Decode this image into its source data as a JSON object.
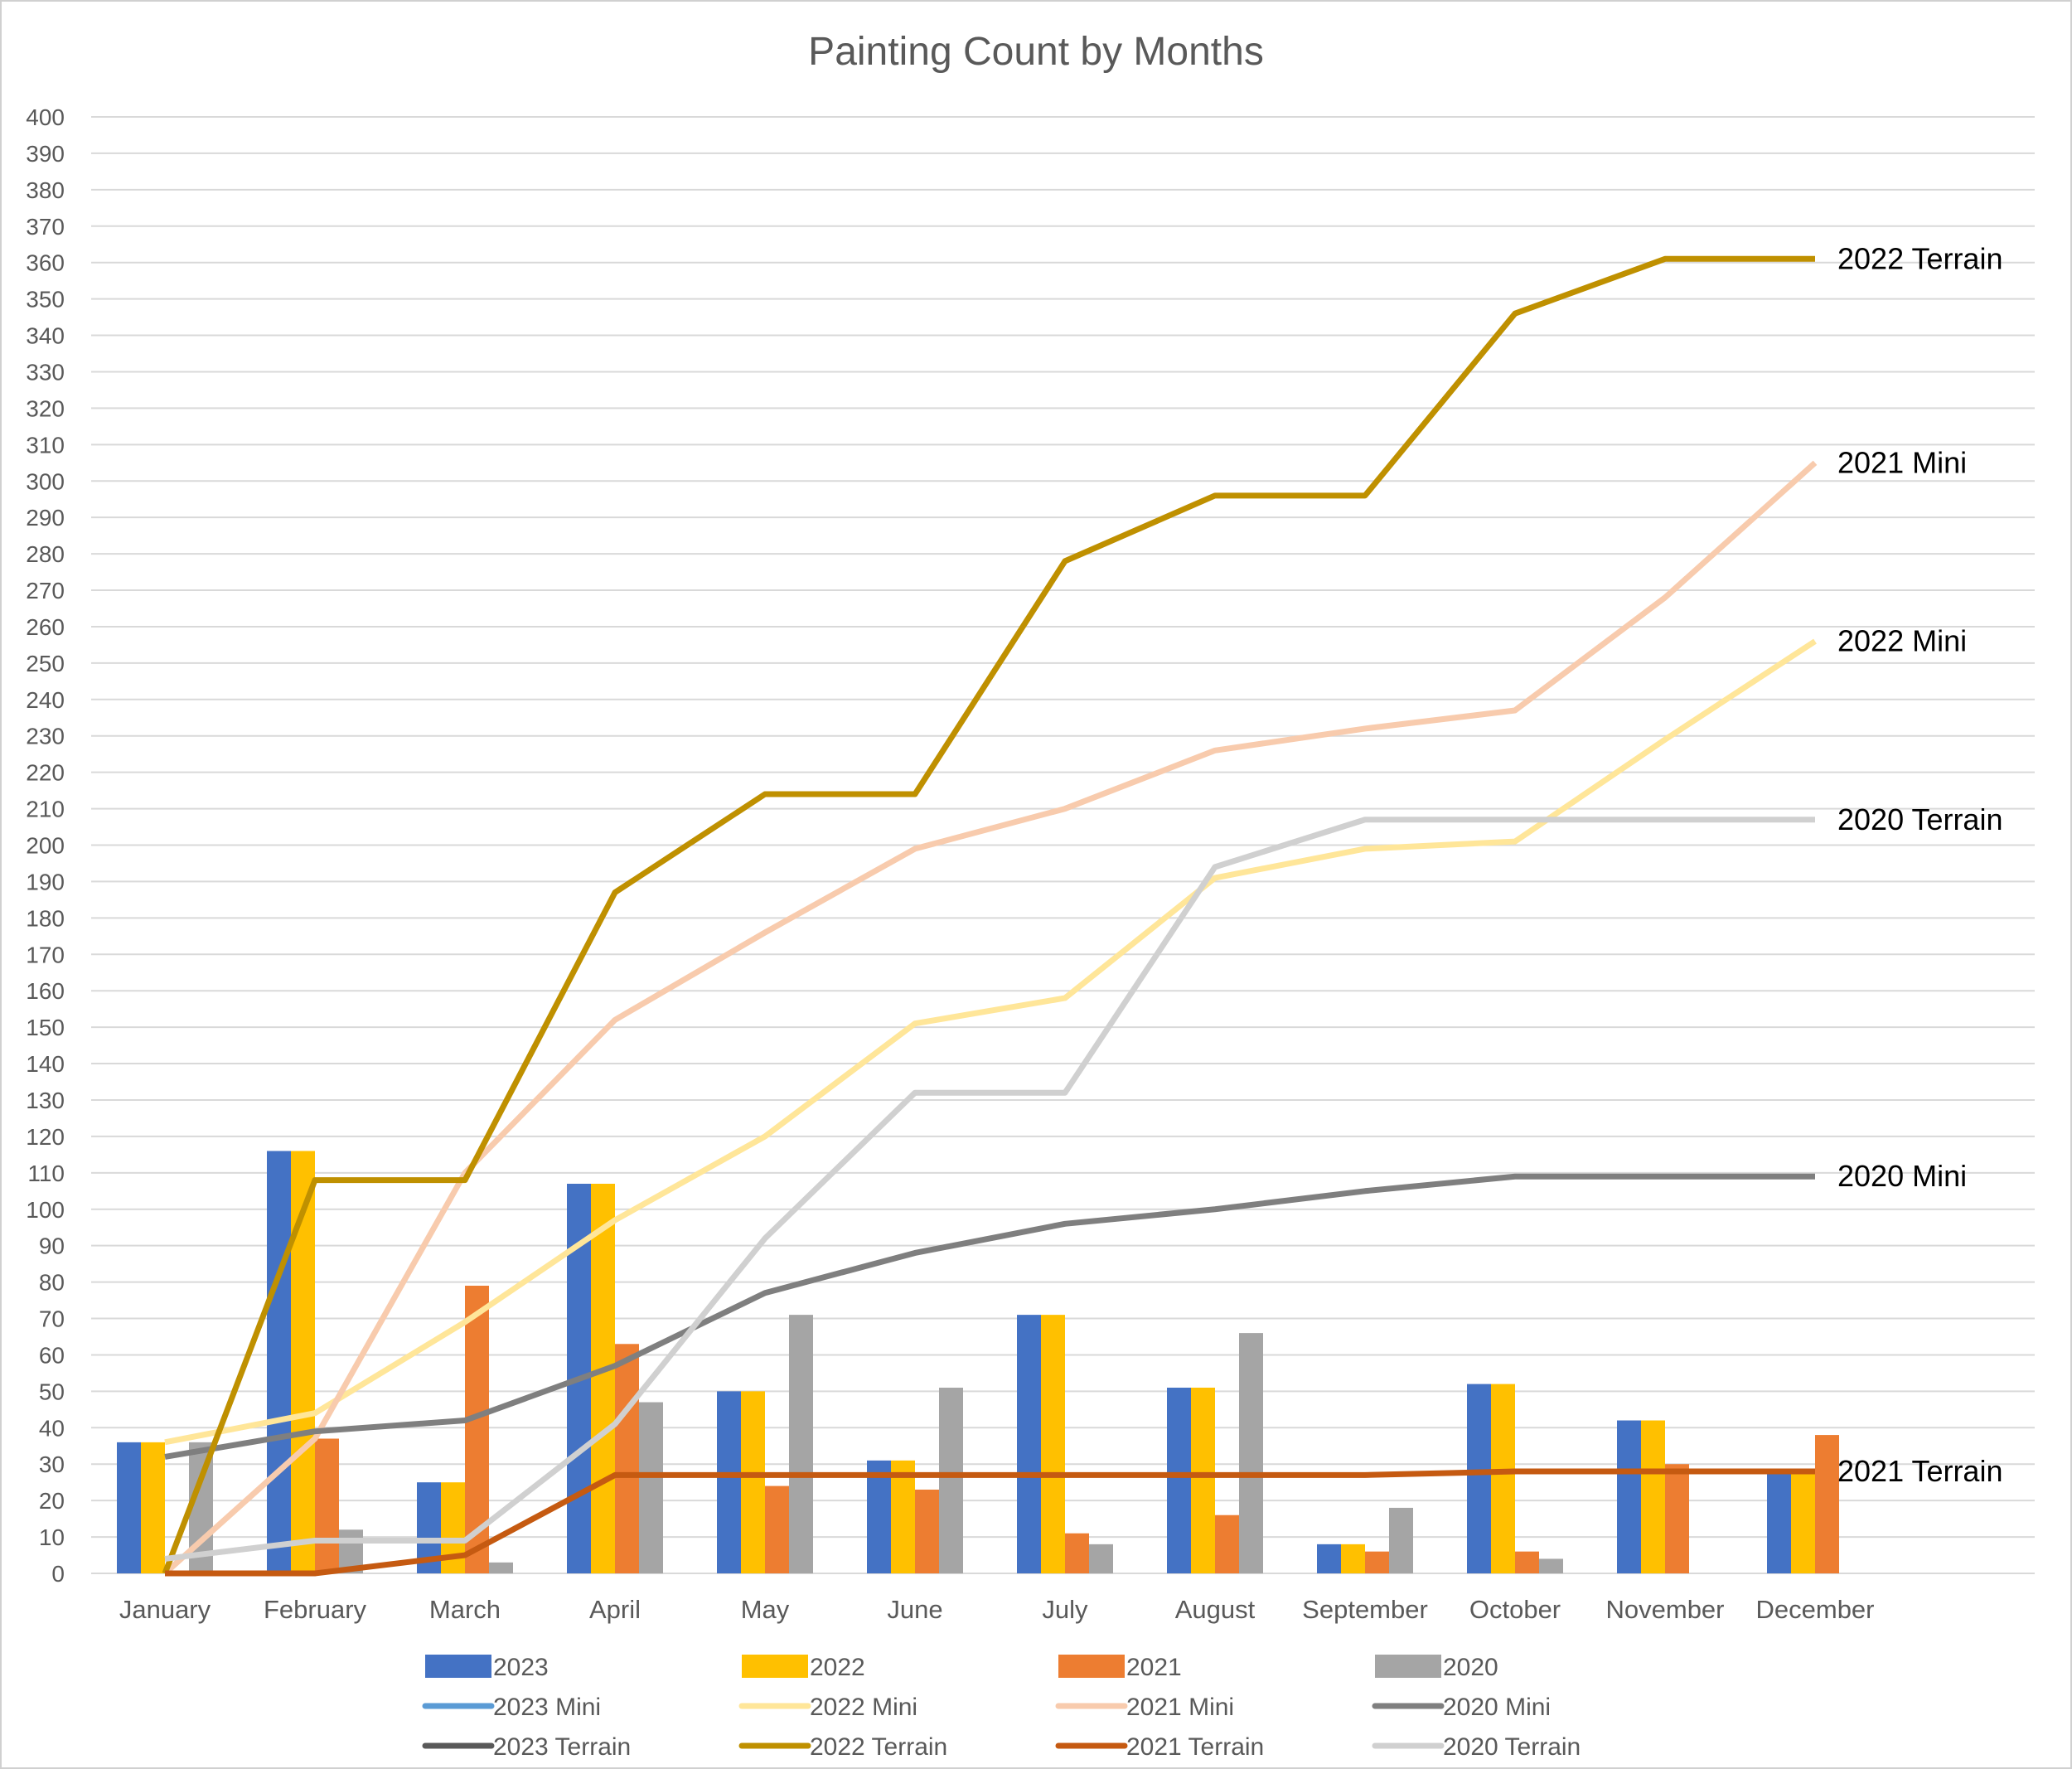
{
  "chart_data": {
    "type": "bar+line",
    "title": "Painting Count by Months",
    "categories": [
      "January",
      "February",
      "March",
      "April",
      "May",
      "June",
      "July",
      "August",
      "September",
      "October",
      "November",
      "December"
    ],
    "ylim": [
      0,
      400
    ],
    "ytick_step": 10,
    "grid": true,
    "legend_position": "bottom",
    "bar_series": [
      {
        "name": "2023",
        "color": "#4472C4",
        "values": [
          36,
          116,
          25,
          107,
          50,
          31,
          71,
          51,
          8,
          52,
          42,
          28
        ]
      },
      {
        "name": "2022",
        "color": "#FFC000",
        "values": [
          36,
          116,
          25,
          107,
          50,
          31,
          71,
          51,
          8,
          52,
          42,
          28
        ]
      },
      {
        "name": "2021",
        "color": "#ED7D31",
        "values": [
          0,
          37,
          79,
          63,
          24,
          23,
          11,
          16,
          6,
          6,
          30,
          38
        ]
      },
      {
        "name": "2020",
        "color": "#A5A5A5",
        "values": [
          36,
          12,
          3,
          47,
          71,
          51,
          8,
          66,
          18,
          4,
          null,
          null
        ]
      }
    ],
    "line_series": [
      {
        "name": "2023 Mini",
        "color": "#5B9BD5",
        "values": [
          null,
          null,
          null,
          null,
          null,
          null,
          null,
          null,
          null,
          null,
          null,
          null
        ],
        "label": null
      },
      {
        "name": "2022 Mini",
        "color": "#FFE699",
        "values": [
          36,
          44,
          69,
          97,
          120,
          151,
          158,
          191,
          199,
          201,
          229,
          256
        ],
        "label": "2022 Mini"
      },
      {
        "name": "2021 Mini",
        "color": "#F8CBAD",
        "values": [
          0,
          37,
          110,
          152,
          176,
          199,
          210,
          226,
          232,
          237,
          268,
          305
        ],
        "label": "2021 Mini"
      },
      {
        "name": "2020 Mini",
        "color": "#7F7F7F",
        "values": [
          32,
          39,
          42,
          57,
          77,
          88,
          96,
          100,
          105,
          109,
          109,
          109
        ],
        "label": "2020 Mini"
      },
      {
        "name": "2023 Terrain",
        "color": "#595959",
        "values": [
          null,
          null,
          null,
          null,
          null,
          null,
          null,
          null,
          null,
          null,
          null,
          null
        ],
        "label": null
      },
      {
        "name": "2022 Terrain",
        "color": "#BF9000",
        "values": [
          0,
          108,
          108,
          187,
          214,
          214,
          278,
          296,
          296,
          346,
          361,
          361
        ],
        "label": "2022 Terrain"
      },
      {
        "name": "2021 Terrain",
        "color": "#C55A11",
        "values": [
          0,
          0,
          5,
          27,
          27,
          27,
          27,
          27,
          27,
          28,
          28,
          28
        ],
        "label": "2021 Terrain"
      },
      {
        "name": "2020 Terrain",
        "color": "#D0D0D0",
        "values": [
          4,
          9,
          9,
          41,
          92,
          132,
          132,
          194,
          207,
          207,
          207,
          207
        ],
        "label": "2020 Terrain"
      }
    ]
  }
}
